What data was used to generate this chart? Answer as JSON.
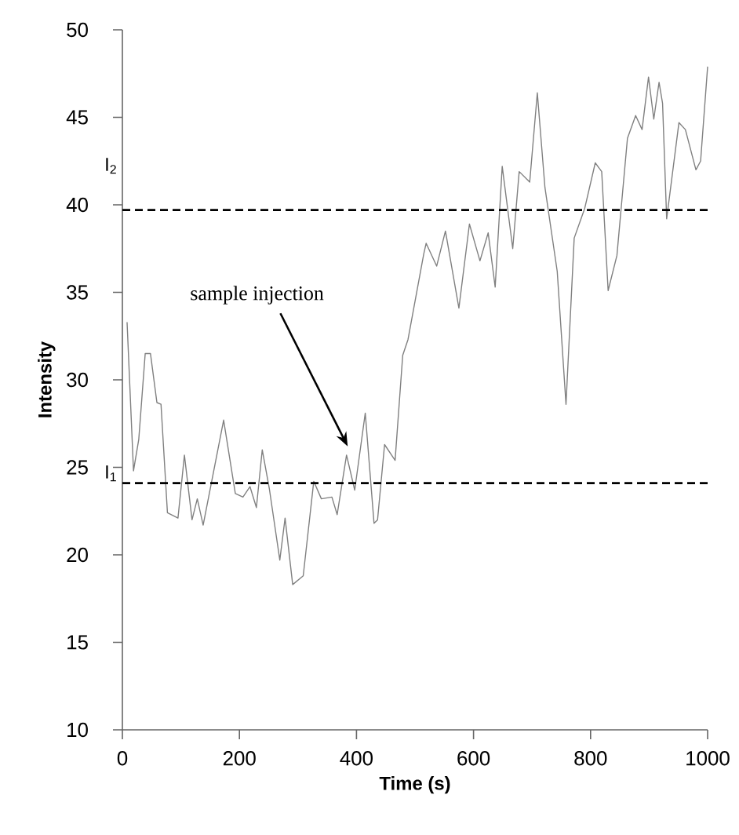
{
  "chart_data": {
    "type": "line",
    "xlabel": "Time (s)",
    "ylabel": "Intensity",
    "xlim": [
      0,
      1000
    ],
    "ylim": [
      10,
      50
    ],
    "xticks": [
      0,
      200,
      400,
      600,
      800,
      1000
    ],
    "yticks": [
      10,
      15,
      20,
      25,
      30,
      35,
      40,
      45,
      50
    ],
    "grid": false,
    "marker": "none",
    "line_style": "solid",
    "series": [
      {
        "color": "#808080",
        "x": [
          8,
          19,
          28,
          39,
          48,
          59,
          66,
          77,
          95,
          106,
          119,
          128,
          138,
          173,
          193,
          206,
          218,
          229,
          239,
          251,
          269,
          278,
          291,
          309,
          327,
          340,
          358,
          367,
          383,
          397,
          415,
          430,
          436,
          448,
          466,
          479,
          488,
          515,
          519,
          537,
          552,
          575,
          593,
          611,
          625,
          637,
          649,
          667,
          678,
          696,
          709,
          722,
          743,
          758,
          772,
          790,
          808,
          819,
          830,
          845,
          863,
          877,
          888,
          899,
          908,
          917,
          923,
          930,
          951,
          962,
          980,
          988,
          1000
        ],
        "values": [
          33.3,
          24.8,
          26.6,
          31.5,
          31.5,
          28.7,
          28.6,
          22.4,
          22.1,
          25.7,
          22.0,
          23.2,
          21.7,
          27.7,
          23.5,
          23.3,
          23.9,
          22.7,
          26.0,
          23.8,
          19.7,
          22.1,
          18.3,
          18.8,
          24.2,
          23.2,
          23.3,
          22.3,
          25.7,
          23.7,
          28.1,
          21.8,
          22.0,
          26.3,
          25.4,
          31.4,
          32.3,
          37.2,
          37.8,
          36.5,
          38.5,
          34.1,
          38.9,
          36.8,
          38.4,
          35.3,
          42.2,
          37.5,
          41.9,
          41.3,
          46.4,
          41.0,
          36.2,
          28.6,
          38.1,
          39.8,
          42.4,
          41.9,
          35.1,
          37.1,
          43.8,
          45.1,
          44.3,
          47.3,
          44.9,
          47.0,
          45.8,
          39.2,
          44.7,
          44.3,
          42.0,
          42.5,
          47.9
        ]
      }
    ],
    "ref_lines": [
      {
        "axis": "y",
        "value": 24.1,
        "label": "I$_{1}$",
        "color": "#000000",
        "line_style": "dashed"
      },
      {
        "axis": "y",
        "value": 39.7,
        "label": "I$_{2}$",
        "color": "#000000",
        "line_style": "dashed"
      }
    ],
    "annotations": [
      "sample injection"
    ]
  }
}
